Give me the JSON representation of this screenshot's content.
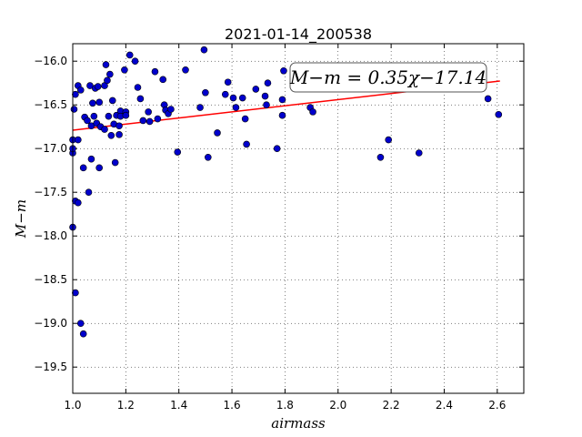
{
  "chart_data": {
    "type": "scatter",
    "title": "2021-01-14_200538",
    "xlabel": "airmass",
    "ylabel": "M−m",
    "xlim": [
      1.0,
      2.7
    ],
    "ylim": [
      -19.8,
      -15.8
    ],
    "y_inverted": true,
    "xticks": [
      "1.0",
      "1.2",
      "1.4",
      "1.6",
      "1.8",
      "2.0",
      "2.2",
      "2.4",
      "2.6"
    ],
    "yticks": [
      "−16.0",
      "−16.5",
      "−17.0",
      "−17.5",
      "−18.0",
      "−18.5",
      "−19.0",
      "−19.5"
    ],
    "grid": true,
    "annotation": "M−m = 0.35χ−17.14",
    "fit": {
      "slope": 0.35,
      "intercept": -17.14,
      "x_range": [
        1.0,
        2.61
      ],
      "color": "#ff0000"
    },
    "point_color": "#0000cc",
    "points": [
      [
        1.0,
        -17.05
      ],
      [
        1.0,
        -17.0
      ],
      [
        1.0,
        -16.9
      ],
      [
        1.0,
        -17.9
      ],
      [
        1.005,
        -16.55
      ],
      [
        1.01,
        -16.38
      ],
      [
        1.01,
        -17.6
      ],
      [
        1.01,
        -18.65
      ],
      [
        1.02,
        -16.28
      ],
      [
        1.02,
        -16.9
      ],
      [
        1.02,
        -17.62
      ],
      [
        1.03,
        -16.33
      ],
      [
        1.03,
        -19.0
      ],
      [
        1.04,
        -19.12
      ],
      [
        1.04,
        -17.22
      ],
      [
        1.045,
        -16.64
      ],
      [
        1.055,
        -16.68
      ],
      [
        1.06,
        -17.5
      ],
      [
        1.065,
        -16.28
      ],
      [
        1.07,
        -17.12
      ],
      [
        1.07,
        -16.74
      ],
      [
        1.075,
        -16.48
      ],
      [
        1.08,
        -16.63
      ],
      [
        1.085,
        -16.31
      ],
      [
        1.09,
        -16.71
      ],
      [
        1.095,
        -16.29
      ],
      [
        1.1,
        -17.22
      ],
      [
        1.1,
        -16.47
      ],
      [
        1.105,
        -16.75
      ],
      [
        1.12,
        -16.78
      ],
      [
        1.12,
        -16.28
      ],
      [
        1.125,
        -16.04
      ],
      [
        1.13,
        -16.22
      ],
      [
        1.135,
        -16.63
      ],
      [
        1.14,
        -16.15
      ],
      [
        1.145,
        -16.85
      ],
      [
        1.15,
        -16.45
      ],
      [
        1.155,
        -16.72
      ],
      [
        1.16,
        -17.16
      ],
      [
        1.165,
        -16.62
      ],
      [
        1.175,
        -16.84
      ],
      [
        1.175,
        -16.74
      ],
      [
        1.18,
        -16.57
      ],
      [
        1.18,
        -16.63
      ],
      [
        1.195,
        -16.1
      ],
      [
        1.2,
        -16.58
      ],
      [
        1.2,
        -16.62
      ],
      [
        1.215,
        -15.93
      ],
      [
        1.235,
        -16.0
      ],
      [
        1.245,
        -16.3
      ],
      [
        1.255,
        -16.43
      ],
      [
        1.265,
        -16.68
      ],
      [
        1.285,
        -16.58
      ],
      [
        1.29,
        -16.69
      ],
      [
        1.31,
        -16.12
      ],
      [
        1.32,
        -16.66
      ],
      [
        1.34,
        -16.21
      ],
      [
        1.345,
        -16.5
      ],
      [
        1.35,
        -16.56
      ],
      [
        1.36,
        -16.6
      ],
      [
        1.37,
        -16.55
      ],
      [
        1.395,
        -17.04
      ],
      [
        1.425,
        -16.1
      ],
      [
        1.48,
        -16.53
      ],
      [
        1.495,
        -15.87
      ],
      [
        1.5,
        -16.36
      ],
      [
        1.51,
        -17.1
      ],
      [
        1.545,
        -16.82
      ],
      [
        1.575,
        -16.38
      ],
      [
        1.585,
        -16.24
      ],
      [
        1.605,
        -16.42
      ],
      [
        1.615,
        -16.53
      ],
      [
        1.64,
        -16.42
      ],
      [
        1.65,
        -16.66
      ],
      [
        1.655,
        -16.95
      ],
      [
        1.69,
        -16.32
      ],
      [
        1.725,
        -16.4
      ],
      [
        1.73,
        -16.5
      ],
      [
        1.735,
        -16.25
      ],
      [
        1.77,
        -17.0
      ],
      [
        1.79,
        -16.62
      ],
      [
        1.79,
        -16.44
      ],
      [
        1.795,
        -16.11
      ],
      [
        1.895,
        -16.53
      ],
      [
        1.905,
        -16.58
      ],
      [
        2.16,
        -17.1
      ],
      [
        2.19,
        -16.9
      ],
      [
        2.305,
        -17.05
      ],
      [
        2.565,
        -16.43
      ],
      [
        2.605,
        -16.61
      ]
    ]
  }
}
